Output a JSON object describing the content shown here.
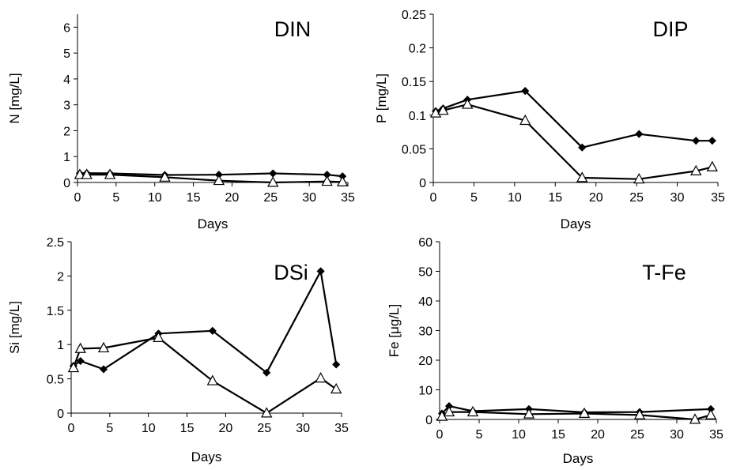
{
  "chart_data": [
    {
      "type": "line",
      "title": "DIN",
      "xlabel": "Days",
      "ylabel": "N [mg/L]",
      "xlim": [
        0,
        35
      ],
      "ylim": [
        0,
        6.5
      ],
      "xticks": [
        "0",
        "5",
        "10",
        "15",
        "20",
        "25",
        "30",
        "35"
      ],
      "yticks": [
        "0",
        "1",
        "2",
        "3",
        "4",
        "5",
        "6"
      ],
      "series": [
        {
          "marker": "diamond",
          "x": [
            0.3,
            1.2,
            4.2,
            11.3,
            18.3,
            25.3,
            32.3,
            34.3
          ],
          "y": [
            0.35,
            0.36,
            0.35,
            0.29,
            0.3,
            0.35,
            0.3,
            0.24
          ]
        },
        {
          "marker": "triangle",
          "x": [
            0.3,
            1.2,
            4.2,
            11.3,
            18.3,
            25.3,
            32.3,
            34.3
          ],
          "y": [
            0.3,
            0.3,
            0.3,
            0.2,
            0.07,
            0.0,
            0.04,
            0.02
          ]
        }
      ]
    },
    {
      "type": "line",
      "title": "DIP",
      "xlabel": "Days",
      "ylabel": "P [mg/L]",
      "xlim": [
        0,
        35
      ],
      "ylim": [
        0,
        0.25
      ],
      "xticks": [
        "0",
        "5",
        "10",
        "15",
        "20",
        "25",
        "30",
        "35"
      ],
      "yticks": [
        "0",
        "0.05",
        "0.1",
        "0.15",
        "0.2",
        "0.25"
      ],
      "series": [
        {
          "marker": "diamond",
          "x": [
            0.3,
            1.2,
            4.2,
            11.3,
            18.3,
            25.3,
            32.3,
            34.3
          ],
          "y": [
            0.106,
            0.11,
            0.123,
            0.136,
            0.052,
            0.072,
            0.062,
            0.062
          ]
        },
        {
          "marker": "triangle",
          "x": [
            0.3,
            1.2,
            4.2,
            11.3,
            18.3,
            25.3,
            32.3,
            34.3
          ],
          "y": [
            0.103,
            0.107,
            0.116,
            0.092,
            0.007,
            0.005,
            0.017,
            0.023
          ]
        }
      ]
    },
    {
      "type": "line",
      "title": "DSi",
      "xlabel": "Days",
      "ylabel": "Si [mg/L]",
      "xlim": [
        0,
        35
      ],
      "ylim": [
        0,
        2.5
      ],
      "xticks": [
        "0",
        "5",
        "10",
        "15",
        "20",
        "25",
        "30",
        "35"
      ],
      "yticks": [
        "0",
        "0.5",
        "1",
        "1.5",
        "2",
        "2.5"
      ],
      "series": [
        {
          "marker": "diamond",
          "x": [
            0.3,
            1.2,
            4.2,
            11.3,
            18.3,
            25.3,
            32.3,
            34.3
          ],
          "y": [
            0.69,
            0.76,
            0.64,
            1.16,
            1.2,
            0.59,
            2.07,
            0.71
          ]
        },
        {
          "marker": "triangle",
          "x": [
            0.3,
            1.2,
            4.2,
            11.3,
            18.3,
            25.3,
            32.3,
            34.3
          ],
          "y": [
            0.66,
            0.94,
            0.95,
            1.1,
            0.47,
            0.0,
            0.51,
            0.35
          ]
        }
      ]
    },
    {
      "type": "line",
      "title": "T-Fe",
      "xlabel": "Days",
      "ylabel": "Fe [μg/L]",
      "xlim": [
        0,
        35
      ],
      "ylim": [
        0,
        60
      ],
      "xticks": [
        "0",
        "5",
        "10",
        "15",
        "20",
        "25",
        "30",
        "35"
      ],
      "yticks": [
        "0",
        "10",
        "20",
        "30",
        "40",
        "50",
        "60"
      ],
      "series": [
        {
          "marker": "diamond",
          "x": [
            0.3,
            1.2,
            4.2,
            11.3,
            18.3,
            25.3,
            34.3
          ],
          "y": [
            2.0,
            4.5,
            2.8,
            3.5,
            2.4,
            2.5,
            3.5
          ]
        },
        {
          "marker": "triangle",
          "x": [
            0.3,
            1.2,
            4.2,
            11.3,
            18.3,
            25.3,
            32.3,
            34.3
          ],
          "y": [
            1.0,
            2.5,
            2.5,
            1.8,
            2.0,
            1.5,
            0.0,
            1.5
          ]
        }
      ]
    }
  ]
}
